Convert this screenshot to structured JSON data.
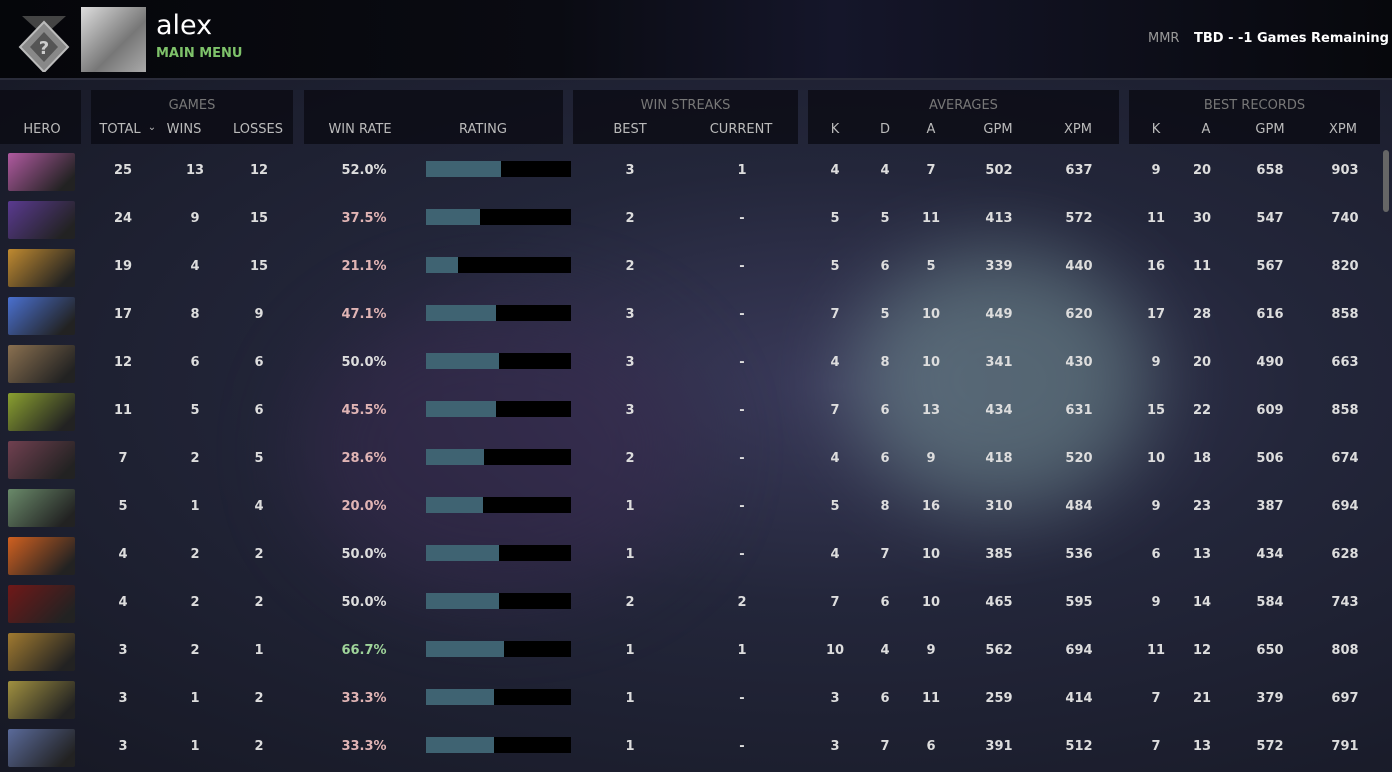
{
  "header": {
    "username": "alex",
    "subtitle": "MAIN MENU",
    "mmr_label": "MMR",
    "mmr_value": "TBD - -1 Games Remaining"
  },
  "groups": {
    "games": "GAMES",
    "win_streaks": "WIN STREAKS",
    "averages": "AVERAGES",
    "best_records": "BEST RECORDS"
  },
  "columns": {
    "hero": "HERO",
    "total": "TOTAL",
    "wins": "WINS",
    "losses": "LOSSES",
    "win_rate": "WIN RATE",
    "rating": "RATING",
    "best": "BEST",
    "current": "CURRENT",
    "avg_k": "K",
    "avg_d": "D",
    "avg_a": "A",
    "avg_gpm": "GPM",
    "avg_xpm": "XPM",
    "best_k": "K",
    "best_a": "A",
    "best_gpm": "GPM",
    "best_xpm": "XPM"
  },
  "colors": {
    "win_rate_low": "#e0b4b4",
    "win_rate_high": "#9fd49a",
    "win_rate_even": "#dddddd",
    "rating_fill": "#3f6372"
  },
  "rows": [
    {
      "hero_color": "#b05aa0",
      "total": "25",
      "wins": "13",
      "losses": "12",
      "win_rate": "52.0%",
      "rating": 0.52,
      "best": "3",
      "current": "1",
      "k": "4",
      "d": "4",
      "a": "7",
      "gpm": "502",
      "xpm": "637",
      "bk": "9",
      "ba": "20",
      "bgpm": "658",
      "bxpm": "903"
    },
    {
      "hero_color": "#5a3a90",
      "total": "24",
      "wins": "9",
      "losses": "15",
      "win_rate": "37.5%",
      "rating": 0.37,
      "best": "2",
      "current": "-",
      "k": "5",
      "d": "5",
      "a": "11",
      "gpm": "413",
      "xpm": "572",
      "bk": "11",
      "ba": "30",
      "bgpm": "547",
      "bxpm": "740"
    },
    {
      "hero_color": "#c08a30",
      "total": "19",
      "wins": "4",
      "losses": "15",
      "win_rate": "21.1%",
      "rating": 0.22,
      "best": "2",
      "current": "-",
      "k": "5",
      "d": "6",
      "a": "5",
      "gpm": "339",
      "xpm": "440",
      "bk": "16",
      "ba": "11",
      "bgpm": "567",
      "bxpm": "820"
    },
    {
      "hero_color": "#4a70d0",
      "total": "17",
      "wins": "8",
      "losses": "9",
      "win_rate": "47.1%",
      "rating": 0.48,
      "best": "3",
      "current": "-",
      "k": "7",
      "d": "5",
      "a": "10",
      "gpm": "449",
      "xpm": "620",
      "bk": "17",
      "ba": "28",
      "bgpm": "616",
      "bxpm": "858"
    },
    {
      "hero_color": "#8a7050",
      "total": "12",
      "wins": "6",
      "losses": "6",
      "win_rate": "50.0%",
      "rating": 0.5,
      "best": "3",
      "current": "-",
      "k": "4",
      "d": "8",
      "a": "10",
      "gpm": "341",
      "xpm": "430",
      "bk": "9",
      "ba": "20",
      "bgpm": "490",
      "bxpm": "663"
    },
    {
      "hero_color": "#8aa030",
      "total": "11",
      "wins": "5",
      "losses": "6",
      "win_rate": "45.5%",
      "rating": 0.48,
      "best": "3",
      "current": "-",
      "k": "7",
      "d": "6",
      "a": "13",
      "gpm": "434",
      "xpm": "631",
      "bk": "15",
      "ba": "22",
      "bgpm": "609",
      "bxpm": "858"
    },
    {
      "hero_color": "#704050",
      "total": "7",
      "wins": "2",
      "losses": "5",
      "win_rate": "28.6%",
      "rating": 0.4,
      "best": "2",
      "current": "-",
      "k": "4",
      "d": "6",
      "a": "9",
      "gpm": "418",
      "xpm": "520",
      "bk": "10",
      "ba": "18",
      "bgpm": "506",
      "bxpm": "674"
    },
    {
      "hero_color": "#6a8a6a",
      "total": "5",
      "wins": "1",
      "losses": "4",
      "win_rate": "20.0%",
      "rating": 0.39,
      "best": "1",
      "current": "-",
      "k": "5",
      "d": "8",
      "a": "16",
      "gpm": "310",
      "xpm": "484",
      "bk": "9",
      "ba": "23",
      "bgpm": "387",
      "bxpm": "694"
    },
    {
      "hero_color": "#d06020",
      "total": "4",
      "wins": "2",
      "losses": "2",
      "win_rate": "50.0%",
      "rating": 0.5,
      "best": "1",
      "current": "-",
      "k": "4",
      "d": "7",
      "a": "10",
      "gpm": "385",
      "xpm": "536",
      "bk": "6",
      "ba": "13",
      "bgpm": "434",
      "bxpm": "628"
    },
    {
      "hero_color": "#701818",
      "total": "4",
      "wins": "2",
      "losses": "2",
      "win_rate": "50.0%",
      "rating": 0.5,
      "best": "2",
      "current": "2",
      "k": "7",
      "d": "6",
      "a": "10",
      "gpm": "465",
      "xpm": "595",
      "bk": "9",
      "ba": "14",
      "bgpm": "584",
      "bxpm": "743"
    },
    {
      "hero_color": "#a07a30",
      "total": "3",
      "wins": "2",
      "losses": "1",
      "win_rate": "66.7%",
      "rating": 0.54,
      "best": "1",
      "current": "1",
      "k": "10",
      "d": "4",
      "a": "9",
      "gpm": "562",
      "xpm": "694",
      "bk": "11",
      "ba": "12",
      "bgpm": "650",
      "bxpm": "808"
    },
    {
      "hero_color": "#a09040",
      "total": "3",
      "wins": "1",
      "losses": "2",
      "win_rate": "33.3%",
      "rating": 0.47,
      "best": "1",
      "current": "-",
      "k": "3",
      "d": "6",
      "a": "11",
      "gpm": "259",
      "xpm": "414",
      "bk": "7",
      "ba": "21",
      "bgpm": "379",
      "bxpm": "697"
    },
    {
      "hero_color": "#5a6a9a",
      "total": "3",
      "wins": "1",
      "losses": "2",
      "win_rate": "33.3%",
      "rating": 0.47,
      "best": "1",
      "current": "-",
      "k": "3",
      "d": "7",
      "a": "6",
      "gpm": "391",
      "xpm": "512",
      "bk": "7",
      "ba": "13",
      "bgpm": "572",
      "bxpm": "791"
    }
  ]
}
